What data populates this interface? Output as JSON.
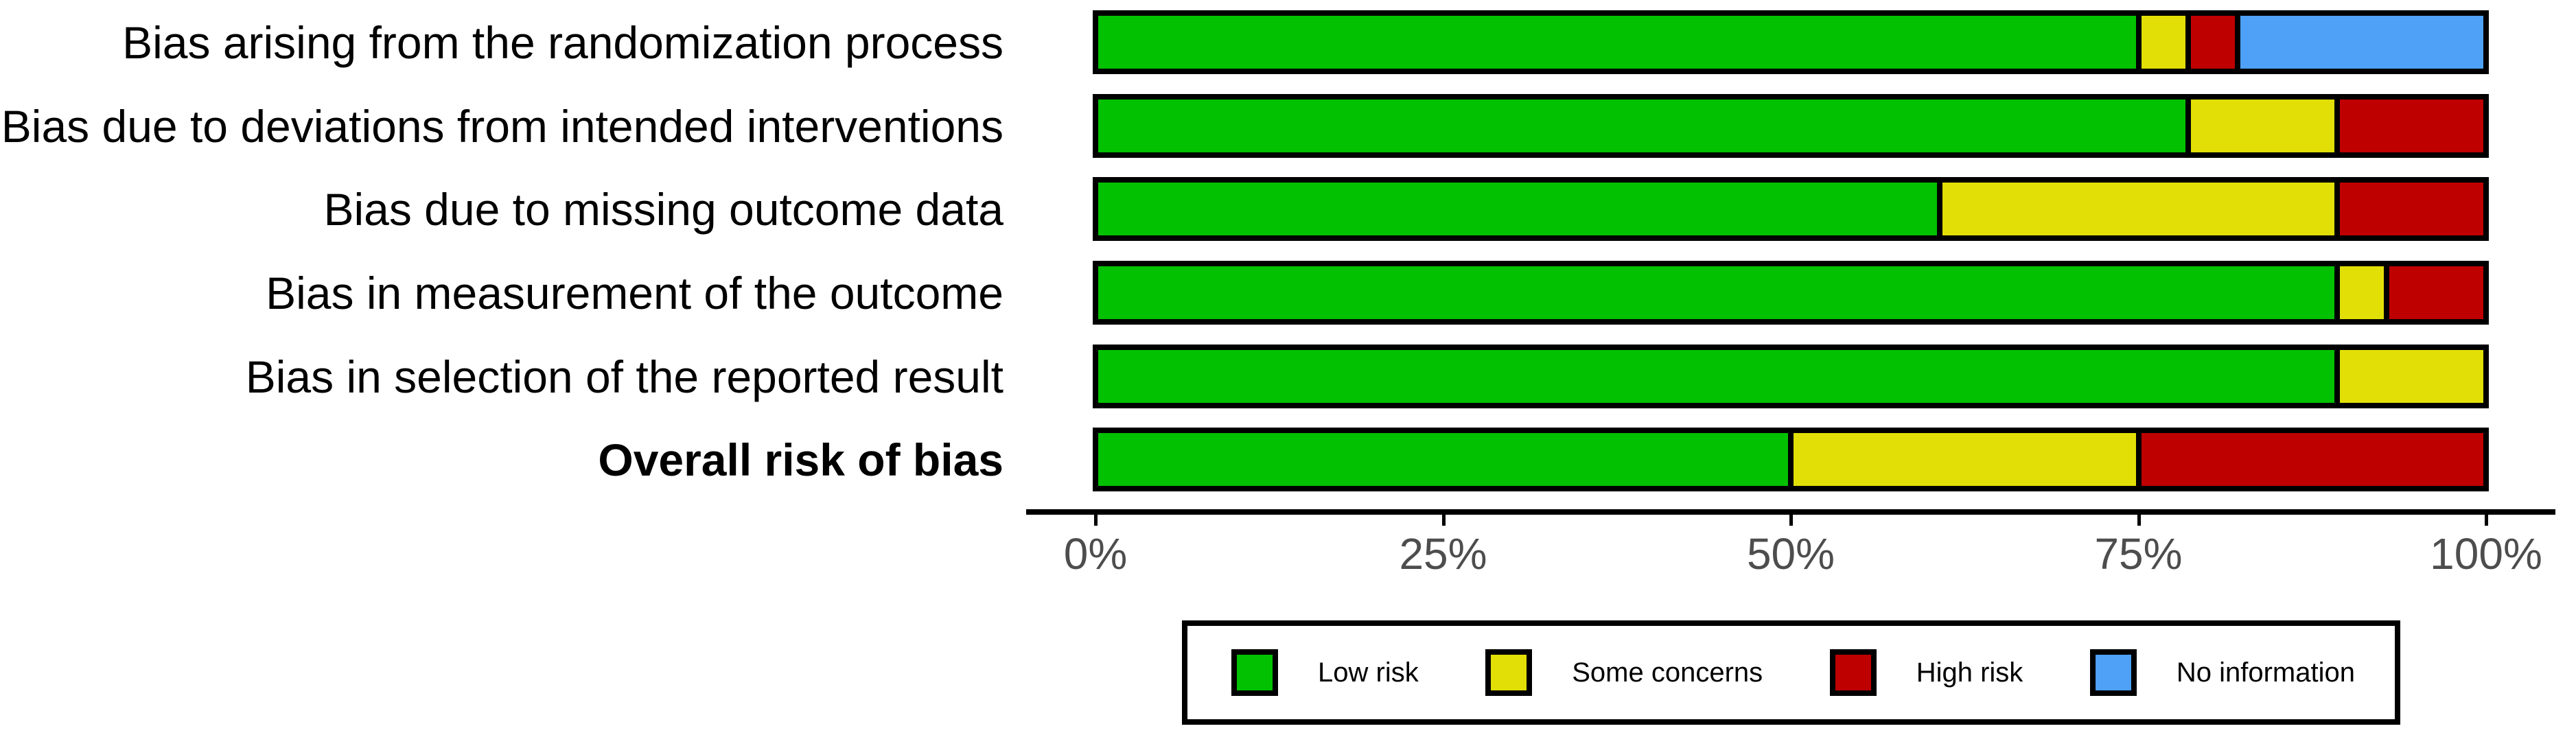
{
  "colors": {
    "low_risk": "#02C100",
    "some_concerns": "#E2DF07",
    "high_risk": "#BF0000",
    "no_information": "#4EA1F7",
    "axis_text": "#4D4D4D",
    "outline": "#000000",
    "background": "#FFFFFF"
  },
  "chart_data": {
    "type": "bar",
    "orientation": "horizontal_stacked",
    "title": "",
    "xlabel": "",
    "ylabel": "",
    "grid": false,
    "categories": [
      "Bias arising from the randomization process",
      "Bias due to deviations from intended interventions",
      "Bias due to missing outcome data",
      "Bias in measurement of the outcome",
      "Bias in selection of the reported result",
      "Overall risk of bias"
    ],
    "bold_categories": [
      "Overall risk of bias"
    ],
    "series": [
      {
        "name": "Low risk",
        "color": "#02C100",
        "values": [
          75.0,
          78.57,
          60.71,
          89.29,
          89.29,
          50.0
        ]
      },
      {
        "name": "Some concerns",
        "color": "#E2DF07",
        "values": [
          3.57,
          10.71,
          28.57,
          3.57,
          10.71,
          25.0
        ]
      },
      {
        "name": "High risk",
        "color": "#BF0000",
        "values": [
          3.57,
          10.71,
          10.71,
          7.14,
          0,
          25.0
        ]
      },
      {
        "name": "No information",
        "color": "#4EA1F7",
        "values": [
          17.86,
          0,
          0,
          0,
          0,
          0
        ]
      }
    ],
    "x_axis": {
      "tick_labels": [
        "0%",
        "25%",
        "50%",
        "75%",
        "100%"
      ],
      "tick_values": [
        0,
        25,
        50,
        75,
        100
      ],
      "range": [
        0,
        100
      ],
      "unit": "percent"
    },
    "legend": {
      "position": "bottom",
      "entries": [
        "Low risk",
        "Some concerns",
        "High risk",
        "No information"
      ]
    }
  }
}
